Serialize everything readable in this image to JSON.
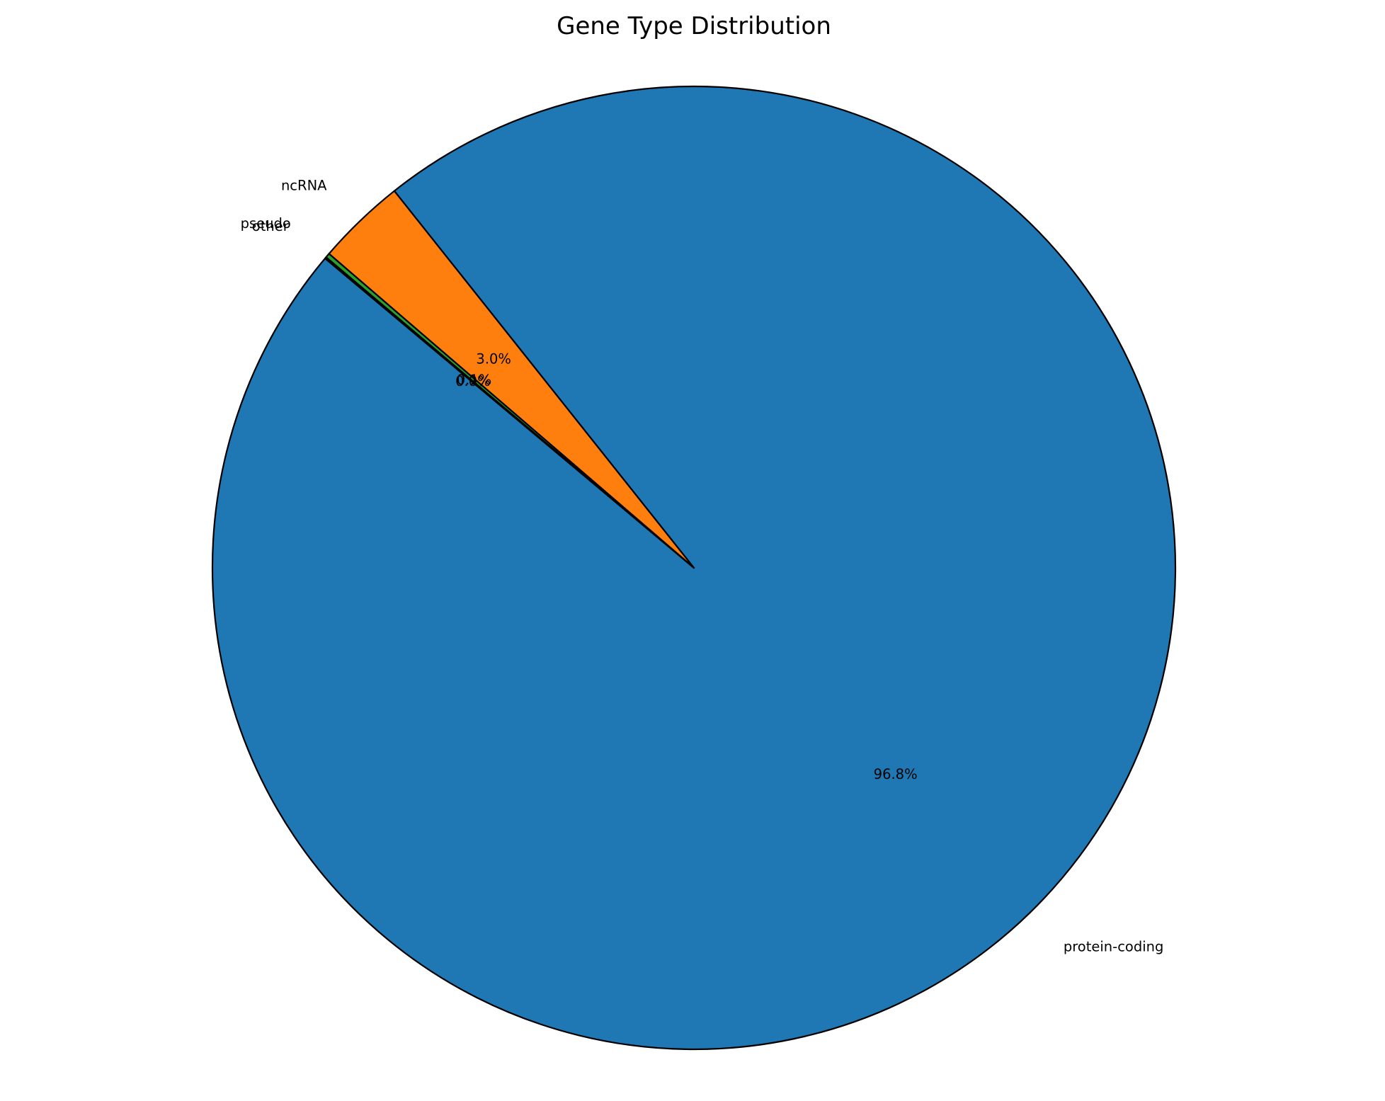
{
  "chart_data": {
    "type": "pie",
    "title": "Gene Type Distribution",
    "start_angle_deg": 140,
    "direction": "counterclockwise",
    "slices": [
      {
        "label": "protein-coding",
        "value": 96.8,
        "pct_text": "96.8%",
        "color": "#1f77b4"
      },
      {
        "label": "ncRNA",
        "value": 3.0,
        "pct_text": "3.0%",
        "color": "#ff7f0e"
      },
      {
        "label": "pseudo",
        "value": 0.15,
        "pct_text": "0.1%",
        "color": "#2ca02c"
      },
      {
        "label": "other",
        "value": 0.05,
        "pct_text": "0.0%",
        "color": "#d62728"
      }
    ],
    "edge_color": "#000000"
  }
}
